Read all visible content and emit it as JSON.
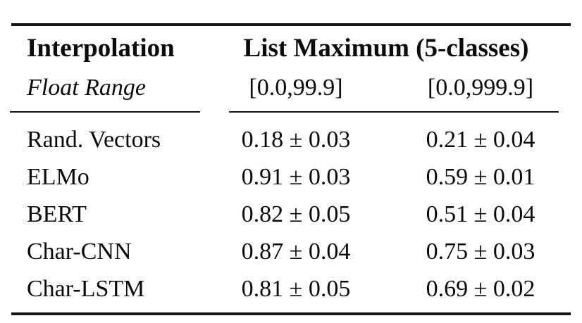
{
  "table": {
    "header": {
      "col1_title": "Interpolation",
      "group_title": "List Maximum (5-classes)",
      "col1_subtitle": "Float Range",
      "range1_label": "[0.0,99.9]",
      "range2_label": "[0.0,999.9]"
    },
    "rows": [
      {
        "model": "Rand. Vectors",
        "range1": "0.18 ± 0.03",
        "range2": "0.21 ± 0.04"
      },
      {
        "model": "ELMo",
        "range1": "0.91 ± 0.03",
        "range2": "0.59 ± 0.01"
      },
      {
        "model": "BERT",
        "range1": "0.82 ± 0.05",
        "range2": "0.51 ± 0.04"
      },
      {
        "model": "Char-CNN",
        "range1": "0.87 ± 0.04",
        "range2": "0.75 ± 0.03"
      },
      {
        "model": "Char-LSTM",
        "range1": "0.81 ± 0.05",
        "range2": "0.69 ± 0.02"
      }
    ],
    "colors": {
      "text": "#0b0b0b",
      "rule": "#141414",
      "background": "#ffffff"
    }
  }
}
